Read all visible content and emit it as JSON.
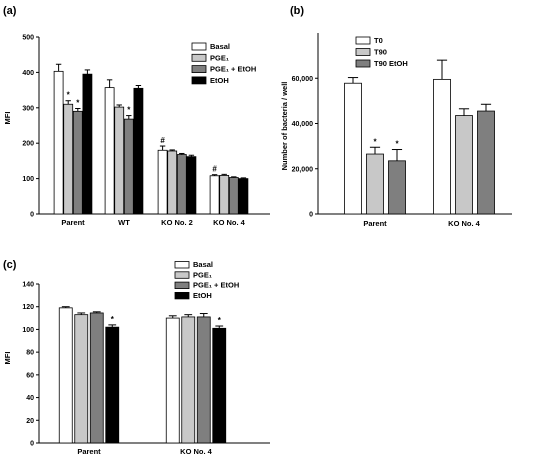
{
  "colors": {
    "basal": "#ffffff",
    "light_gray": "#c8c8c8",
    "dark_gray": "#7f7f7f",
    "black": "#000000"
  },
  "chart_data": [
    {
      "panel": "(a)",
      "type": "bar",
      "title": "",
      "xlabel": "",
      "ylabel": "MFI",
      "ylim": [
        0,
        500
      ],
      "yticks": [
        "0",
        "100",
        "200",
        "300",
        "400",
        "500"
      ],
      "categories": [
        "Parent",
        "WT",
        "KO No. 2",
        "KO No. 4"
      ],
      "legend_position": "top-right",
      "series": [
        {
          "name": "Basal",
          "color": "#ffffff",
          "values": [
            403,
            357,
            180,
            108
          ],
          "errors": [
            20,
            22,
            12,
            3
          ],
          "annotations": [
            "",
            "",
            "#",
            "#"
          ]
        },
        {
          "name": "PGE₁",
          "color": "#c8c8c8",
          "values": [
            310,
            302,
            178,
            109
          ],
          "errors": [
            10,
            6,
            3,
            3
          ],
          "annotations": [
            "*",
            "",
            "",
            ""
          ]
        },
        {
          "name": "PGE₁ + EtOH",
          "color": "#7f7f7f",
          "values": [
            290,
            268,
            168,
            103
          ],
          "errors": [
            8,
            10,
            3,
            2
          ],
          "annotations": [
            "*",
            "*",
            "",
            ""
          ]
        },
        {
          "name": "EtOH",
          "color": "#000000",
          "values": [
            395,
            355,
            162,
            100
          ],
          "errors": [
            12,
            8,
            4,
            2
          ],
          "annotations": [
            "",
            "",
            "",
            ""
          ]
        }
      ]
    },
    {
      "panel": "(b)",
      "type": "bar",
      "title": "",
      "xlabel": "",
      "ylabel": "Number of bacteria / well",
      "ylim": [
        0,
        80000
      ],
      "yticks": [
        "0",
        "20,000",
        "40,000",
        "60,000"
      ],
      "ytick_values": [
        0,
        20000,
        40000,
        60000
      ],
      "categories": [
        "Parent",
        "KO No. 4"
      ],
      "legend_position": "top-left",
      "series": [
        {
          "name": "T0",
          "color": "#ffffff",
          "values": [
            57800,
            59500
          ],
          "errors": [
            2500,
            8500
          ],
          "annotations": [
            "",
            ""
          ]
        },
        {
          "name": "T90",
          "color": "#c8c8c8",
          "values": [
            26500,
            43500
          ],
          "errors": [
            3000,
            3000
          ],
          "annotations": [
            "*",
            ""
          ]
        },
        {
          "name": "T90 EtOH",
          "color": "#7f7f7f",
          "values": [
            23500,
            45500
          ],
          "errors": [
            5000,
            3000
          ],
          "annotations": [
            "*",
            ""
          ]
        }
      ]
    },
    {
      "panel": "(c)",
      "type": "bar",
      "title": "",
      "xlabel": "",
      "ylabel": "MFI",
      "ylim": [
        0,
        140
      ],
      "yticks": [
        "0",
        "20",
        "40",
        "60",
        "80",
        "100",
        "120",
        "140"
      ],
      "categories": [
        "Parent",
        "KO No. 4"
      ],
      "legend_position": "top-right",
      "series": [
        {
          "name": "Basal",
          "color": "#ffffff",
          "values": [
            119,
            110
          ],
          "errors": [
            1,
            2
          ],
          "annotations": [
            "",
            ""
          ]
        },
        {
          "name": "PGE₁",
          "color": "#c8c8c8",
          "values": [
            113,
            111
          ],
          "errors": [
            1.5,
            2
          ],
          "annotations": [
            "",
            ""
          ]
        },
        {
          "name": "PGE₁ + EtOH",
          "color": "#7f7f7f",
          "values": [
            114.5,
            111
          ],
          "errors": [
            1,
            3
          ],
          "annotations": [
            "",
            ""
          ]
        },
        {
          "name": "EtOH",
          "color": "#000000",
          "values": [
            102,
            101
          ],
          "errors": [
            2,
            2
          ],
          "annotations": [
            "*",
            "*"
          ]
        }
      ]
    }
  ]
}
